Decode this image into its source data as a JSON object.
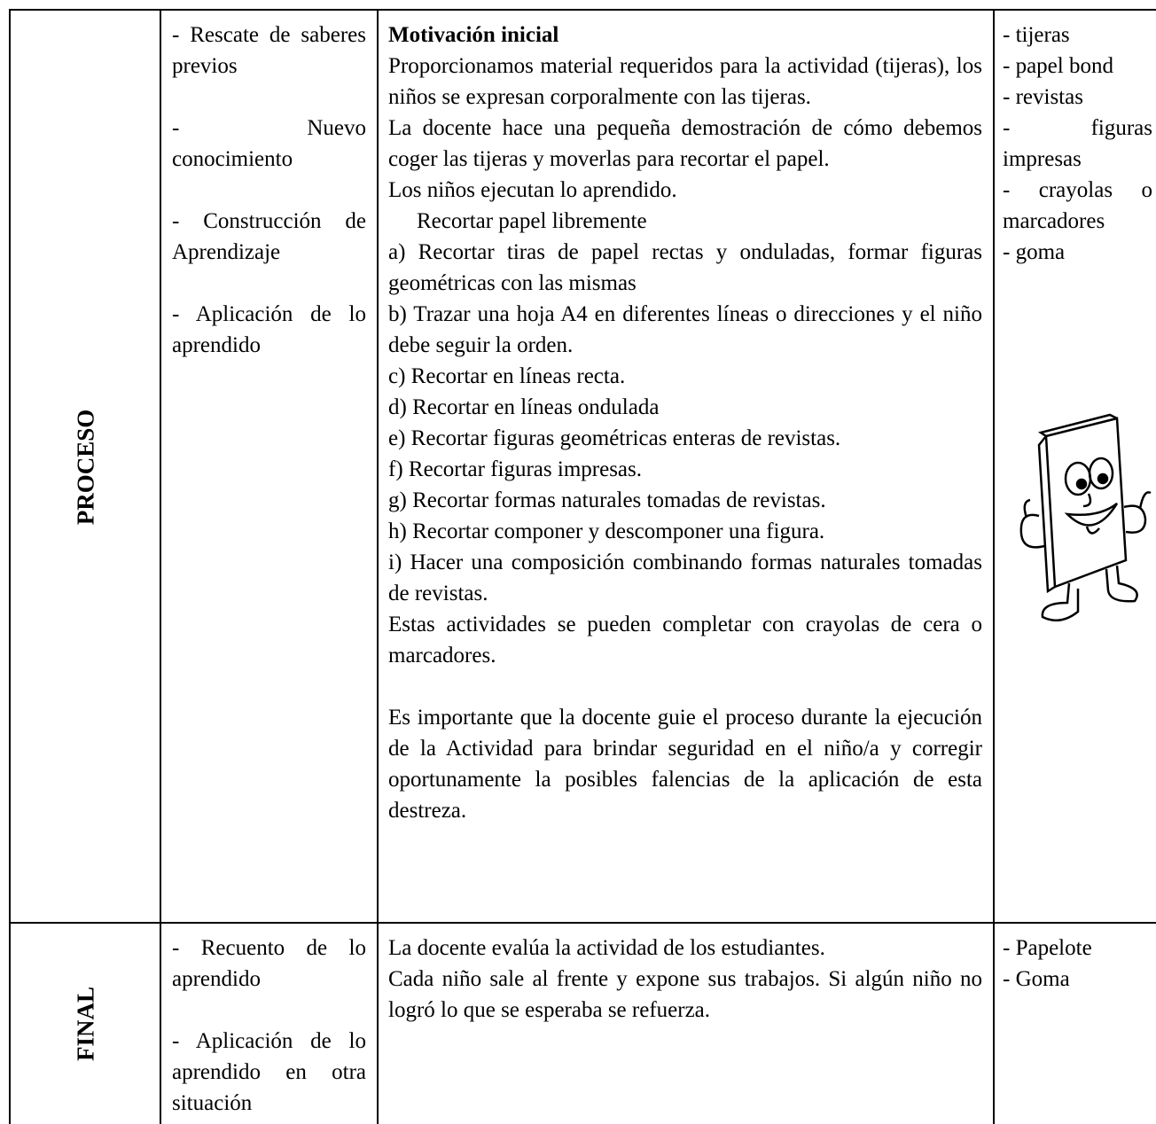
{
  "table": {
    "rows": [
      {
        "stage": "PROCESO",
        "steps": [
          "- Rescate de saberes previos",
          "- Nuevo conocimiento",
          "- Construcción de Aprendizaje",
          "- Aplicación de lo aprendido"
        ],
        "activity_title": "Motivación inicial",
        "activities": [
          "Proporcionamos material requeridos para la actividad (tijeras), los niños se expresan corporalmente con las tijeras.",
          "La docente hace una pequeña demostración de cómo debemos coger las tijeras y moverlas para recortar el papel.",
          "Los niños ejecutan lo aprendido.",
          "Recortar papel libremente",
          "a) Recortar tiras de papel rectas y onduladas, formar figuras geométricas con las mismas",
          "b) Trazar una hoja A4 en diferentes líneas o direcciones y el niño debe seguir la orden.",
          "c) Recortar en líneas recta.",
          "d) Recortar en líneas ondulada",
          "e) Recortar figuras geométricas enteras de revistas.",
          "f) Recortar figuras impresas.",
          "g) Recortar formas naturales tomadas de revistas.",
          "h) Recortar componer y descomponer una figura.",
          "i) Hacer una composición combinando formas naturales tomadas de revistas.",
          "Estas actividades se pueden completar con crayolas de cera o marcadores.",
          "Es importante que la docente guie el proceso durante la ejecución de la Actividad para brindar seguridad en el niño/a y corregir oportunamente la posibles falencias de la aplicación de esta destreza."
        ],
        "resources": [
          "- tijeras",
          "- papel bond",
          "- revistas",
          "- figuras impresas",
          "- crayolas o marcadores",
          "- goma"
        ]
      },
      {
        "stage": "FINAL",
        "steps": [
          "- Recuento de lo aprendido",
          "- Aplicación de lo aprendido en otra situación"
        ],
        "activities": [
          "La docente evalúa la actividad de los estudiantes.",
          "Cada niño sale al frente y expone sus trabajos. Si algún niño no logró lo que se esperaba se refuerza."
        ],
        "resources": [
          "- Papelote",
          "- Goma"
        ]
      }
    ]
  }
}
